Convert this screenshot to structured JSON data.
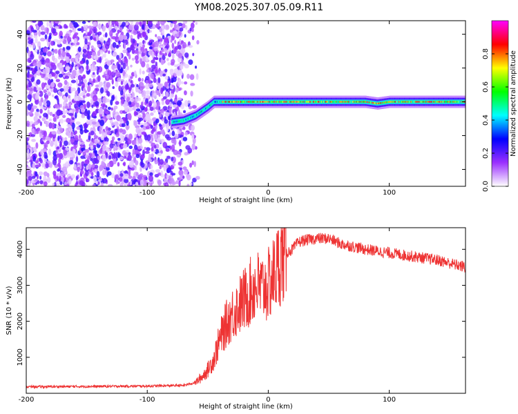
{
  "figure_title": "YM08.2025.307.05.09.R11",
  "chart_data": [
    {
      "type": "heatmap",
      "name": "spectrogram",
      "xlabel": "Height of straight line (km)",
      "ylabel": "Frequency (Hz)",
      "xlim": [
        -200,
        163
      ],
      "ylim": [
        -50,
        48
      ],
      "xticks": [
        -200,
        -100,
        0,
        100
      ],
      "xticklabels": [
        "-200",
        "-100",
        "0",
        "100"
      ],
      "yticks": [
        -40,
        -20,
        0,
        20,
        40
      ],
      "yticklabels": [
        "-40",
        "-20",
        "0",
        "20",
        "40"
      ],
      "noise_region_km": [
        -200,
        -70
      ],
      "signal_ridge": {
        "x": [
          -80,
          -70,
          -60,
          -50,
          -45,
          -40,
          0,
          10,
          20,
          50,
          80,
          90,
          100,
          163
        ],
        "y": [
          -12,
          -11,
          -8,
          -3,
          0,
          0,
          0,
          0,
          0,
          0,
          0,
          -1,
          0,
          0
        ]
      },
      "colorbar": {
        "label": "Normalized spectral amplitude",
        "range": [
          0,
          1
        ],
        "ticks": [
          0.0,
          0.2,
          0.4,
          0.6,
          0.8
        ],
        "ticklabels": [
          "0.0",
          "0.2",
          "0.4",
          "0.6",
          "0.8"
        ],
        "colors": [
          "#ffffff",
          "#9b30ff",
          "#0000ff",
          "#00ffff",
          "#00ff00",
          "#ffff00",
          "#ff0000",
          "#ff00ff"
        ]
      }
    },
    {
      "type": "line",
      "name": "snr",
      "xlabel": "Height of straight line (km)",
      "ylabel": "SNR (10 * v/v)",
      "xlim": [
        -200,
        163
      ],
      "ylim": [
        0,
        4600
      ],
      "xticks": [
        -200,
        -100,
        0,
        100
      ],
      "xticklabels": [
        "-200",
        "-100",
        "0",
        "100"
      ],
      "yticks": [
        1000,
        2000,
        3000,
        4000
      ],
      "yticklabels": [
        "1000",
        "2000",
        "3000",
        "4000"
      ],
      "color": "#ee3333",
      "series": [
        {
          "name": "SNR",
          "x": [
            -200,
            -150,
            -100,
            -70,
            -60,
            -55,
            -50,
            -45,
            -40,
            -35,
            -30,
            -25,
            -20,
            -15,
            -10,
            -5,
            0,
            5,
            10,
            15,
            20,
            25,
            30,
            40,
            50,
            60,
            80,
            100,
            120,
            140,
            163
          ],
          "y": [
            180,
            190,
            200,
            220,
            300,
            450,
            650,
            950,
            1500,
            1900,
            2200,
            2400,
            2600,
            2800,
            3000,
            2900,
            3000,
            3300,
            3700,
            3900,
            4000,
            4200,
            4250,
            4300,
            4300,
            4150,
            4000,
            3900,
            3800,
            3700,
            3500
          ]
        }
      ]
    }
  ]
}
